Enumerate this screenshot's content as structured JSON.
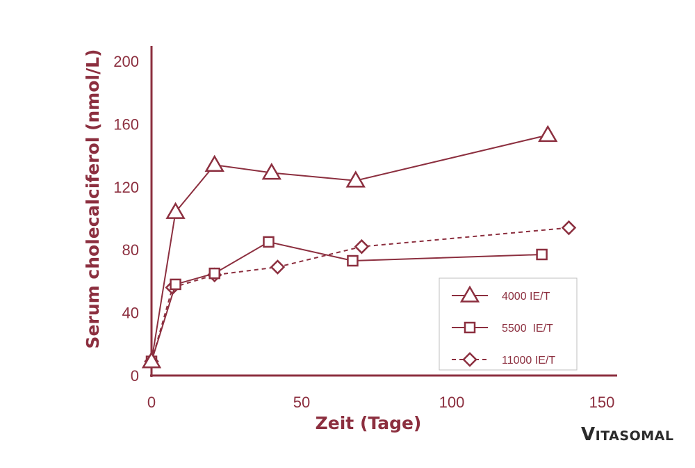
{
  "colors": {
    "main": "#8c2f3f",
    "logo": "#2b2b2b",
    "background": "#ffffff"
  },
  "chart_data": {
    "type": "line",
    "xlabel": "Zeit (Tage)",
    "ylabel": "Serum cholecalciferol (nmol/L)",
    "xlim": [
      0,
      150
    ],
    "ylim": [
      0,
      200
    ],
    "xticks": [
      0,
      50,
      100,
      150
    ],
    "yticks": [
      0,
      40,
      80,
      120,
      160,
      200
    ],
    "grid": false,
    "legend_position": "bottom-right",
    "series": [
      {
        "name": "4000 IE/T",
        "marker": "triangle",
        "line": "solid",
        "x": [
          0,
          8,
          21,
          40,
          68,
          132
        ],
        "y": [
          9,
          104,
          134,
          129,
          124,
          153
        ]
      },
      {
        "name": "5500  IE/T",
        "marker": "square",
        "line": "solid",
        "x": [
          0,
          8,
          21,
          39,
          67,
          130
        ],
        "y": [
          9,
          58,
          65,
          85,
          73,
          77
        ]
      },
      {
        "name": "11000 IE/T",
        "marker": "diamond",
        "line": "dashed",
        "x": [
          0,
          7,
          21,
          42,
          70,
          139
        ],
        "y": [
          9,
          56,
          64,
          69,
          82,
          94
        ]
      }
    ]
  },
  "logo": {
    "first_letter": "V",
    "rest": "ITASOMAL"
  }
}
